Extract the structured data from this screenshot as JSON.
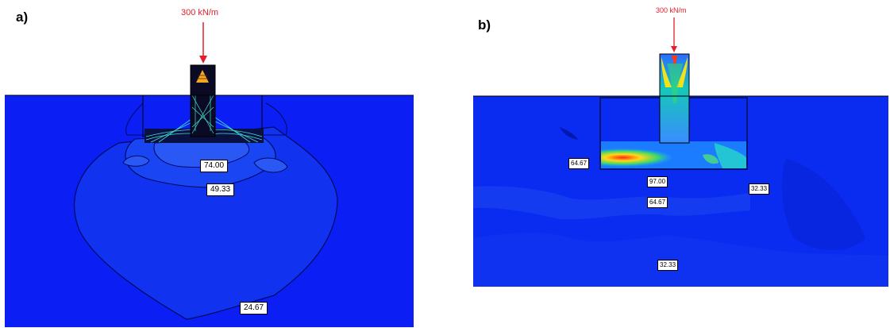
{
  "panels": {
    "a": {
      "label": "a)",
      "load": "300 kN/m",
      "contours": [
        "74.00",
        "49.33",
        "24.67"
      ]
    },
    "b": {
      "label": "b)",
      "load": "300 kN/m",
      "contours": [
        "64.67",
        "97.00",
        "32.33",
        "64.67",
        "32.33"
      ]
    }
  },
  "colors": {
    "soil_a": "#0b1ff5",
    "soil_b": "#0a2cf0",
    "load_arrow": "#e0202a"
  }
}
